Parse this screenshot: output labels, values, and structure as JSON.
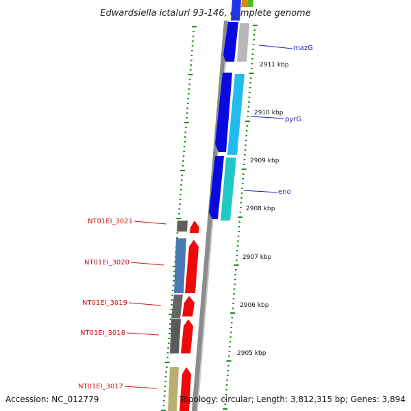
{
  "title": "Edwardsiella ictaluri 93-146, complete genome",
  "footer": {
    "accession": "Accession: NC_012779",
    "topology": "Topology: circular; Length: 3,812,315 bp; Genes: 3,894"
  },
  "kbp_labels": [
    "2911 kbp",
    "2910 kbp",
    "2909 kbp",
    "2908 kbp",
    "2907 kbp",
    "2906 kbp",
    "2905 kbp"
  ],
  "gene_labels_forward": [
    "mazG",
    "pyrG",
    "eno"
  ],
  "gene_labels_reverse": [
    "NT01EI_3021",
    "NT01EI_3020",
    "NT01EI_3019",
    "NT01EI_3018",
    "NT01EI_3017"
  ],
  "colors": {
    "backbone": "#8c8c8c",
    "gene_forward": "#0a0ae0",
    "gene_reverse": "#ee0a0a",
    "ruler_ticks": "#1f8a1f",
    "label_forward": "#1a1acc",
    "label_reverse": "#cc1111"
  }
}
